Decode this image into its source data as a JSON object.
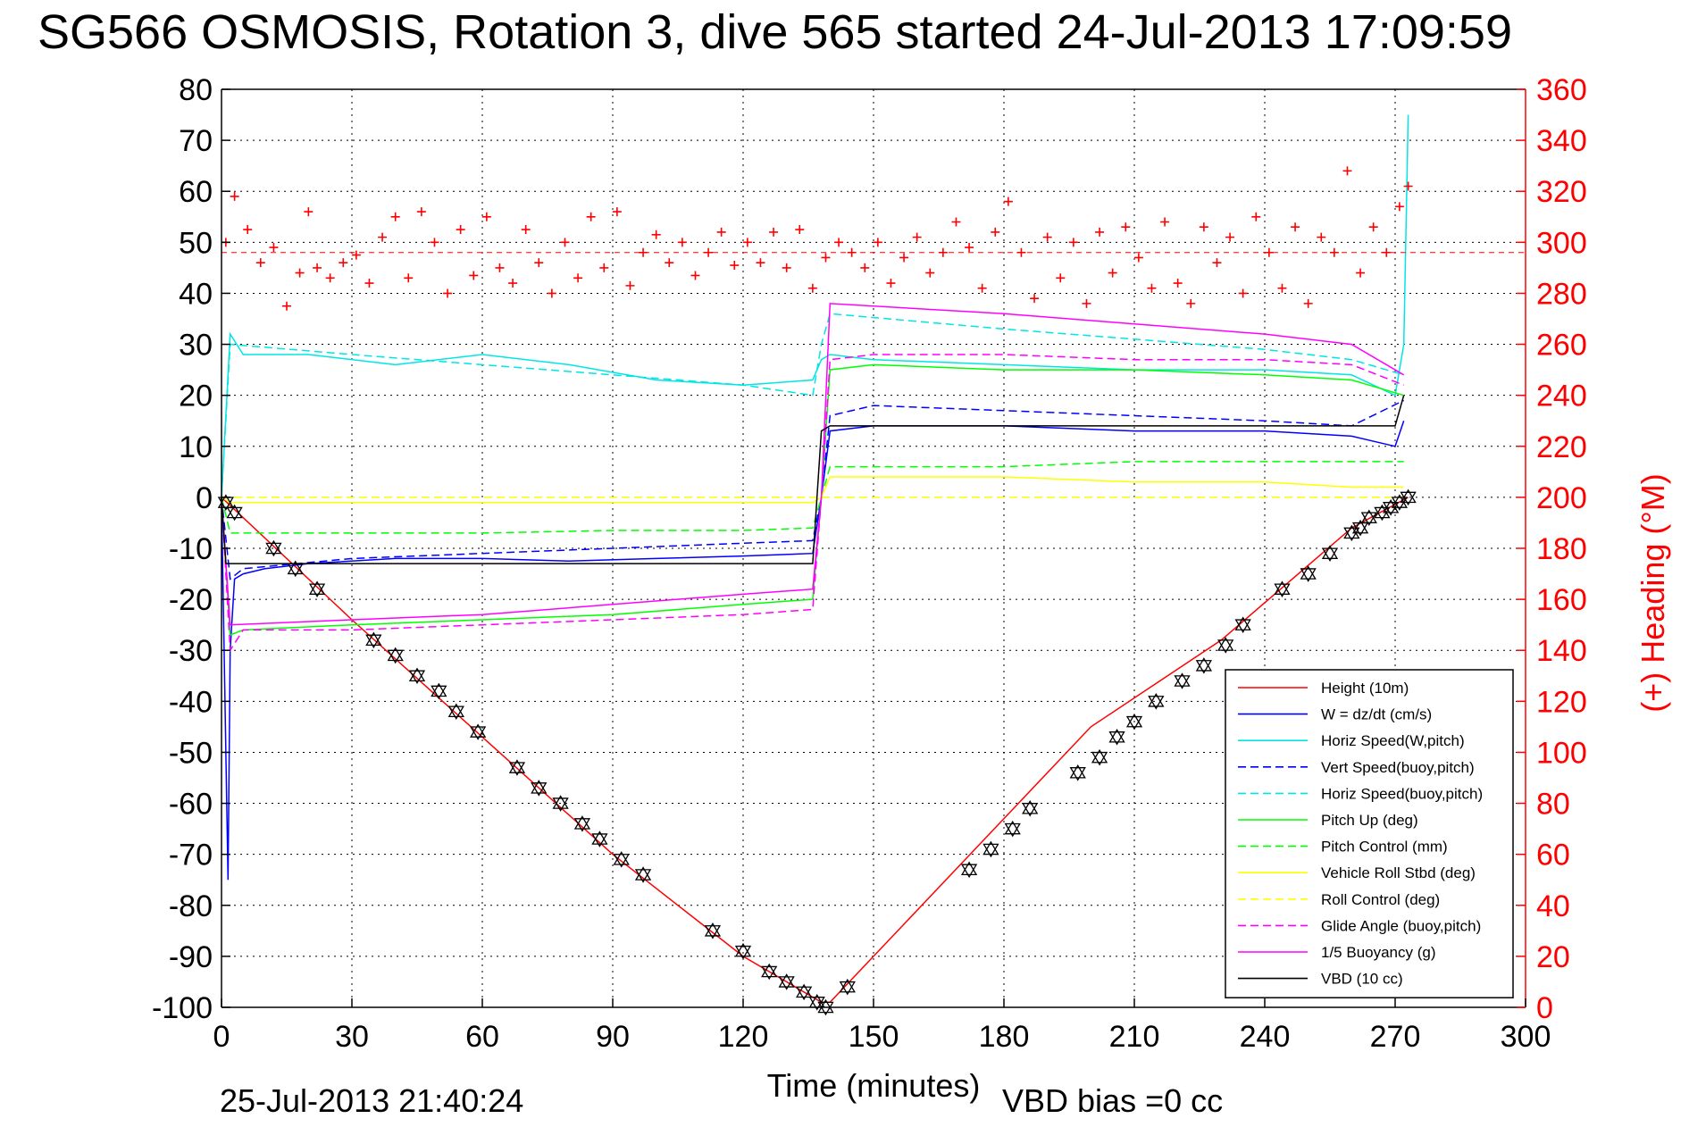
{
  "title": "SG566 OSMOSIS, Rotation 3, dive 565 started 24-Jul-2013 17:09:59",
  "footer_left": "25-Jul-2013 21:40:24",
  "footer_right": "VBD bias =0 cc",
  "chart_data": {
    "type": "line",
    "xlabel": "Time (minutes)",
    "ylabel": "",
    "y2label": "(+) Heading (°M)",
    "xlim": [
      0,
      300
    ],
    "ylim": [
      -100,
      80
    ],
    "y2lim": [
      0,
      360
    ],
    "xticks": [
      "0",
      "30",
      "60",
      "90",
      "120",
      "150",
      "180",
      "210",
      "240",
      "270",
      "300"
    ],
    "yticks": [
      "80",
      "70",
      "60",
      "50",
      "40",
      "30",
      "20",
      "10",
      "0",
      "-10",
      "-20",
      "-30",
      "-40",
      "-50",
      "-60",
      "-70",
      "-80",
      "-90",
      "-100"
    ],
    "y2ticks": [
      "360",
      "340",
      "320",
      "300",
      "280",
      "260",
      "240",
      "220",
      "200",
      "180",
      "160",
      "140",
      "120",
      "100",
      "80",
      "60",
      "40",
      "20",
      "0"
    ],
    "grid": true,
    "legend_position": "lower-right",
    "series": [
      {
        "name": "Height (10m)",
        "color": "#ff0000",
        "style": "solid",
        "x": [
          0,
          15,
          30,
          60,
          90,
          120,
          138,
          140,
          170,
          200,
          230,
          260,
          273
        ],
        "y": [
          0,
          -12,
          -24,
          -47,
          -70,
          -90,
          -99,
          -99,
          -72,
          -45,
          -28,
          -6,
          0
        ]
      },
      {
        "name": "W = dz/dt (cm/s)",
        "color": "#0000ff",
        "style": "solid",
        "x": [
          0,
          1.5,
          2,
          3,
          5,
          10,
          20,
          40,
          60,
          80,
          100,
          120,
          136,
          138,
          140,
          150,
          180,
          210,
          240,
          260,
          270,
          272
        ],
        "y": [
          0,
          -75,
          -30,
          -16,
          -15,
          -14,
          -13,
          -12,
          -12,
          -12.5,
          -12,
          -11.5,
          -11,
          0,
          13,
          14,
          14,
          13,
          13,
          12,
          10,
          15
        ]
      },
      {
        "name": "Horiz Speed(W,pitch)",
        "color": "#00e5e5",
        "style": "solid",
        "x": [
          0,
          2,
          5,
          20,
          40,
          60,
          80,
          100,
          120,
          136,
          138,
          140,
          150,
          180,
          210,
          240,
          260,
          270,
          272,
          273
        ],
        "y": [
          0,
          32,
          28,
          28,
          26,
          28,
          26,
          23,
          22,
          23,
          27,
          28,
          27,
          26,
          25,
          25,
          24,
          20,
          30,
          75
        ]
      },
      {
        "name": "Vert Speed(buoy,pitch)",
        "color": "#0000ff",
        "style": "dashed",
        "x": [
          0,
          2,
          5,
          30,
          60,
          90,
          120,
          136,
          138,
          140,
          150,
          180,
          210,
          240,
          260,
          272
        ],
        "y": [
          0,
          -16,
          -14,
          -12,
          -11,
          -10,
          -9,
          -8.5,
          0,
          16,
          18,
          17,
          16,
          15,
          14,
          19
        ]
      },
      {
        "name": "Horiz Speed(buoy,pitch)",
        "color": "#00e5e5",
        "style": "dashed",
        "x": [
          0,
          2,
          30,
          60,
          90,
          120,
          136,
          138,
          140,
          180,
          210,
          240,
          260,
          272
        ],
        "y": [
          0,
          30,
          28,
          26,
          24,
          22,
          20,
          30,
          36,
          33,
          31,
          29,
          27,
          24
        ]
      },
      {
        "name": "Pitch Up (deg)",
        "color": "#00ff00",
        "style": "solid",
        "x": [
          0,
          2,
          5,
          30,
          60,
          90,
          120,
          136,
          138,
          140,
          150,
          180,
          210,
          240,
          260,
          272
        ],
        "y": [
          0,
          -27,
          -26,
          -25,
          -24,
          -23,
          -21,
          -20,
          0,
          25,
          26,
          25,
          25,
          24,
          23,
          20
        ]
      },
      {
        "name": "Pitch Control (mm)",
        "color": "#00ff00",
        "style": "dashed",
        "x": [
          0,
          2,
          30,
          60,
          90,
          120,
          136,
          138,
          140,
          180,
          210,
          240,
          260,
          272
        ],
        "y": [
          0,
          -7,
          -7,
          -7,
          -6.5,
          -6.5,
          -6,
          0,
          6,
          6,
          7,
          7,
          7,
          7
        ]
      },
      {
        "name": "Vehicle Roll Stbd (deg)",
        "color": "#ffff00",
        "style": "solid",
        "x": [
          0,
          2,
          30,
          60,
          90,
          120,
          136,
          138,
          140,
          180,
          210,
          240,
          260,
          272
        ],
        "y": [
          0,
          -1,
          -1,
          -1,
          -1,
          -1,
          -1,
          0,
          4,
          4,
          3,
          3,
          2,
          2
        ]
      },
      {
        "name": "Roll Control (deg)",
        "color": "#ffff00",
        "style": "dashed",
        "x": [
          0,
          2,
          30,
          60,
          90,
          120,
          136,
          138,
          140,
          180,
          210,
          240,
          260,
          272
        ],
        "y": [
          0,
          0,
          0,
          0,
          0,
          0,
          0,
          0,
          0,
          0,
          0,
          0,
          0,
          0
        ]
      },
      {
        "name": "Glide Angle (buoy,pitch)",
        "color": "#ff00ff",
        "style": "dashed",
        "x": [
          0,
          2,
          5,
          30,
          60,
          90,
          120,
          136,
          138,
          140,
          150,
          180,
          210,
          240,
          260,
          272
        ],
        "y": [
          0,
          -30,
          -26,
          -26,
          -25,
          -24,
          -23,
          -22,
          0,
          27,
          28,
          28,
          27,
          27,
          26,
          22
        ]
      },
      {
        "name": "1/5 Buoyancy (g)",
        "color": "#ff00ff",
        "style": "solid",
        "x": [
          0,
          2,
          30,
          60,
          90,
          120,
          136,
          138,
          140,
          180,
          210,
          240,
          260,
          272
        ],
        "y": [
          0,
          -25,
          -24,
          -23,
          -21,
          -19,
          -18,
          0,
          38,
          36,
          34,
          32,
          30,
          24
        ]
      },
      {
        "name": "VBD (10 cc)",
        "color": "#000000",
        "style": "solid",
        "x": [
          0,
          1,
          30,
          60,
          90,
          120,
          136,
          137,
          138,
          140,
          180,
          210,
          240,
          260,
          270,
          272
        ],
        "y": [
          0,
          -13,
          -13,
          -13,
          -13,
          -13,
          -13,
          0,
          13,
          14,
          14,
          14,
          14,
          14,
          14,
          20
        ]
      }
    ],
    "heading": {
      "name": "(+) Heading",
      "color": "#ff0000",
      "marker": "+",
      "axis": "right",
      "target": 296,
      "x": [
        1,
        3,
        6,
        9,
        12,
        15,
        18,
        20,
        22,
        25,
        28,
        31,
        34,
        37,
        40,
        43,
        46,
        49,
        52,
        55,
        58,
        61,
        64,
        67,
        70,
        73,
        76,
        79,
        82,
        85,
        88,
        91,
        94,
        97,
        100,
        103,
        106,
        109,
        112,
        115,
        118,
        121,
        124,
        127,
        130,
        133,
        136,
        139,
        142,
        145,
        148,
        151,
        154,
        157,
        160,
        163,
        166,
        169,
        172,
        175,
        178,
        181,
        184,
        187,
        190,
        193,
        196,
        199,
        202,
        205,
        208,
        211,
        214,
        217,
        220,
        223,
        226,
        229,
        232,
        235,
        238,
        241,
        244,
        247,
        250,
        253,
        256,
        259,
        262,
        265,
        268,
        271,
        273
      ],
      "y": [
        300,
        318,
        305,
        292,
        298,
        275,
        288,
        312,
        290,
        286,
        292,
        295,
        284,
        302,
        310,
        286,
        312,
        300,
        280,
        305,
        287,
        310,
        290,
        284,
        305,
        292,
        280,
        300,
        286,
        310,
        290,
        312,
        283,
        296,
        303,
        292,
        300,
        287,
        296,
        304,
        291,
        300,
        292,
        304,
        290,
        305,
        282,
        294,
        300,
        296,
        290,
        300,
        284,
        294,
        302,
        288,
        296,
        308,
        298,
        282,
        304,
        316,
        296,
        278,
        302,
        286,
        300,
        276,
        304,
        288,
        306,
        294,
        282,
        308,
        284,
        276,
        306,
        292,
        302,
        280,
        310,
        296,
        282,
        306,
        276,
        302,
        296,
        328,
        288,
        306,
        296,
        314,
        322
      ]
    },
    "markers": {
      "name": "Height samples",
      "color": "#000000",
      "x": [
        1,
        3,
        12,
        17,
        22,
        35,
        40,
        45,
        50,
        54,
        59,
        68,
        73,
        78,
        83,
        87,
        92,
        97,
        113,
        120,
        126,
        130,
        134,
        137,
        139,
        144,
        172,
        177,
        182,
        186,
        197,
        202,
        206,
        210,
        215,
        221,
        226,
        231,
        235,
        244,
        250,
        255,
        260,
        262,
        264,
        267,
        269,
        271,
        273
      ],
      "y": [
        -1,
        -3,
        -10,
        -14,
        -18,
        -28,
        -31,
        -35,
        -38,
        -42,
        -46,
        -53,
        -57,
        -60,
        -64,
        -67,
        -71,
        -74,
        -85,
        -89,
        -93,
        -95,
        -97,
        -99,
        -100,
        -96,
        -73,
        -69,
        -65,
        -61,
        -54,
        -51,
        -47,
        -44,
        -40,
        -36,
        -33,
        -29,
        -25,
        -18,
        -15,
        -11,
        -7,
        -6,
        -4,
        -3,
        -2,
        -1,
        0
      ]
    }
  }
}
